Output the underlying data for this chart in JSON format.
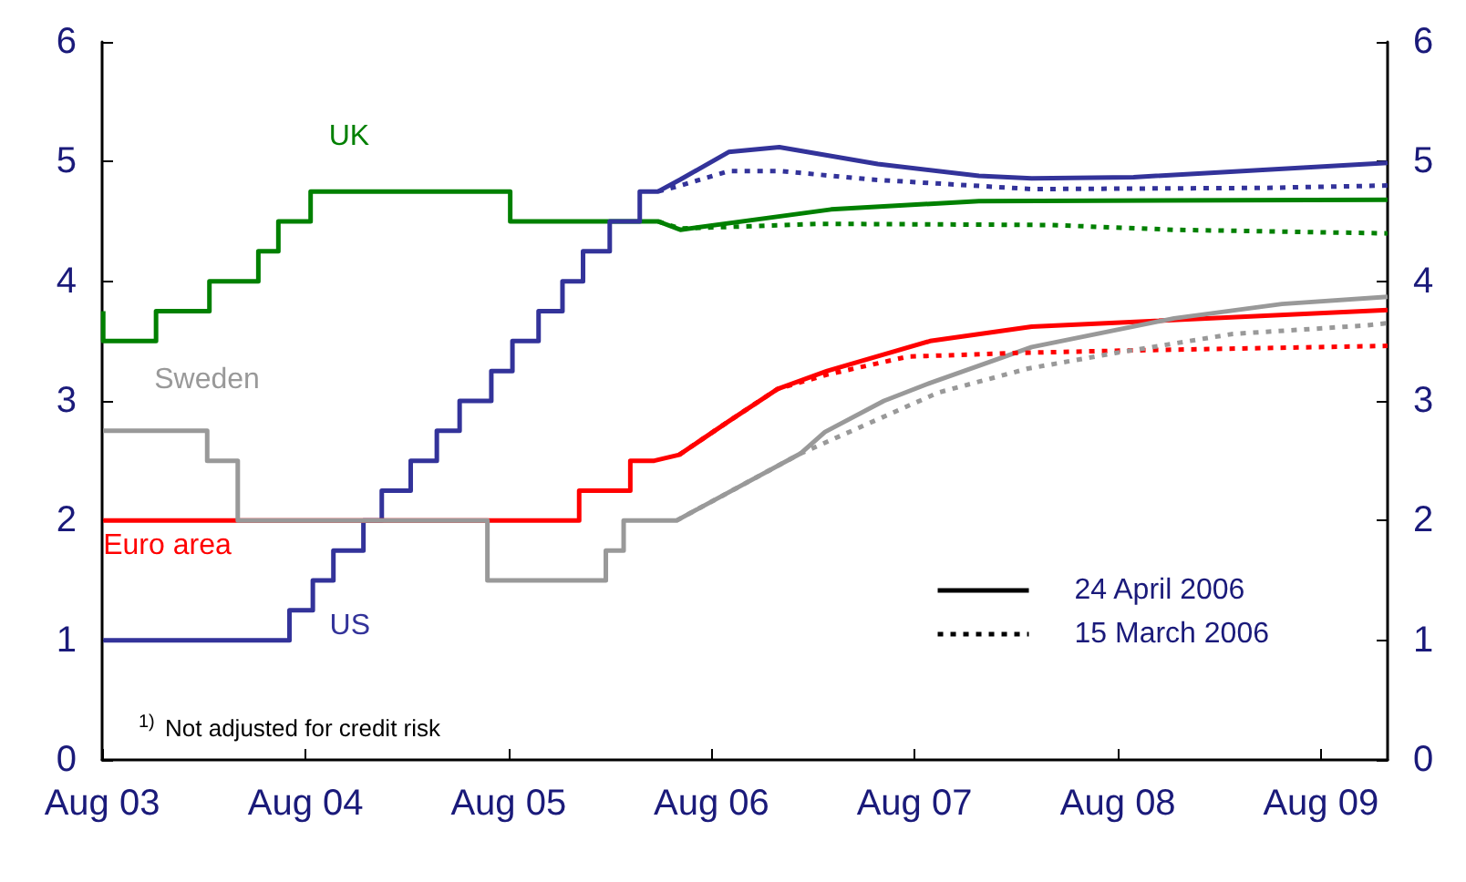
{
  "chart_data": {
    "type": "line",
    "xlim": [
      "2003-08-01",
      "2009-11-29"
    ],
    "xticks": [
      {
        "value": "2003-08-01",
        "label": "Aug 03"
      },
      {
        "value": "2004-08-01",
        "label": "Aug 04"
      },
      {
        "value": "2005-08-01",
        "label": "Aug 05"
      },
      {
        "value": "2006-08-01",
        "label": "Aug 06"
      },
      {
        "value": "2007-08-01",
        "label": "Aug 07"
      },
      {
        "value": "2008-08-01",
        "label": "Aug 08"
      },
      {
        "value": "2009-08-01",
        "label": "Aug 09"
      }
    ],
    "ylim": [
      0,
      6
    ],
    "yticks": [
      0,
      1,
      2,
      3,
      4,
      5,
      6
    ],
    "y2lim": [
      0,
      6
    ],
    "y2ticks": [
      0,
      1,
      2,
      3,
      4,
      5,
      6
    ],
    "grid": false,
    "legend": "bottom right",
    "series": [
      {
        "name": "UK",
        "color": "#008000",
        "line_style": "solid",
        "x": [
          "2003-08-03",
          "2003-08-03",
          "2003-11-06",
          "2003-11-06",
          "2004-02-10",
          "2004-02-10",
          "2004-05-08",
          "2004-05-08",
          "2004-06-13",
          "2004-06-13",
          "2004-08-10",
          "2004-08-10",
          "2005-08-04",
          "2005-08-04",
          "2006-04-27",
          "2006-06-06",
          "2007-03-04",
          "2007-11-25",
          "2009-11-29"
        ],
        "values": [
          3.75,
          3.5,
          3.5,
          3.75,
          3.75,
          4.0,
          4.0,
          4.25,
          4.25,
          4.5,
          4.5,
          4.75,
          4.75,
          4.5,
          4.5,
          4.43,
          4.6,
          4.67,
          4.68
        ]
      },
      {
        "name": "US",
        "color": "#33339a",
        "line_style": "solid",
        "x": [
          "2003-08-03",
          "2004-07-03",
          "2004-07-03",
          "2004-08-14",
          "2004-08-14",
          "2004-09-20",
          "2004-09-20",
          "2004-11-13",
          "2004-11-13",
          "2004-12-16",
          "2004-12-16",
          "2005-02-06",
          "2005-02-06",
          "2005-03-25",
          "2005-03-25",
          "2005-05-05",
          "2005-05-05",
          "2005-07-01",
          "2005-07-01",
          "2005-08-08",
          "2005-08-08",
          "2005-09-24",
          "2005-09-24",
          "2005-11-06",
          "2005-11-06",
          "2005-12-13",
          "2005-12-13",
          "2006-01-30",
          "2006-01-30",
          "2006-03-25",
          "2006-03-25",
          "2006-04-27",
          "2006-06-06",
          "2006-09-01",
          "2006-12-01",
          "2007-05-27",
          "2007-11-25",
          "2008-02-28",
          "2008-08-29",
          "2009-11-29"
        ],
        "values": [
          1.0,
          1.0,
          1.25,
          1.25,
          1.5,
          1.5,
          1.75,
          1.75,
          2.0,
          2.0,
          2.25,
          2.25,
          2.5,
          2.5,
          2.75,
          2.75,
          3.0,
          3.0,
          3.25,
          3.25,
          3.5,
          3.5,
          3.75,
          3.75,
          4.0,
          4.0,
          4.25,
          4.25,
          4.5,
          4.5,
          4.75,
          4.75,
          4.85,
          5.08,
          5.12,
          4.98,
          4.88,
          4.86,
          4.87,
          4.99
        ]
      },
      {
        "name": "Euro area",
        "color": "#ff0000",
        "line_style": "solid",
        "x": [
          "2003-08-03",
          "2005-12-06",
          "2005-12-06",
          "2006-03-08",
          "2006-03-08",
          "2006-04-20",
          "2006-06-04",
          "2006-09-01",
          "2006-11-28",
          "2007-02-25",
          "2007-08-29",
          "2008-02-28",
          "2009-11-29"
        ],
        "values": [
          2.0,
          2.0,
          2.25,
          2.25,
          2.5,
          2.5,
          2.55,
          2.83,
          3.1,
          3.25,
          3.5,
          3.62,
          3.76
        ]
      },
      {
        "name": "Sweden",
        "color": "#999999",
        "line_style": "solid",
        "x": [
          "2003-08-03",
          "2004-02-06",
          "2004-02-06",
          "2004-04-01",
          "2004-04-01",
          "2005-06-24",
          "2005-06-24",
          "2006-01-23",
          "2006-01-23",
          "2006-02-24",
          "2006-02-24",
          "2006-05-30",
          "2007-01-08",
          "2007-02-21",
          "2007-06-07",
          "2007-08-29",
          "2008-02-28",
          "2008-11-10",
          "2009-05-23",
          "2009-11-29"
        ],
        "values": [
          2.75,
          2.75,
          2.5,
          2.5,
          2.0,
          2.0,
          1.5,
          1.5,
          1.75,
          1.75,
          2.0,
          2.0,
          2.56,
          2.74,
          3.0,
          3.15,
          3.45,
          3.69,
          3.81,
          3.87
        ]
      },
      {
        "color": "#008000",
        "line_style": "dotted",
        "x": [
          "2006-04-27",
          "2006-06-06",
          "2007-02-10",
          "2008-04-01",
          "2008-11-10",
          "2009-11-29"
        ],
        "values": [
          4.5,
          4.44,
          4.48,
          4.47,
          4.43,
          4.4
        ]
      },
      {
        "color": "#33339a",
        "line_style": "dotted",
        "x": [
          "2006-04-27",
          "2006-06-06",
          "2006-09-01",
          "2006-12-05",
          "2007-05-16",
          "2008-02-28",
          "2009-04-20",
          "2009-11-29"
        ],
        "values": [
          4.75,
          4.8,
          4.92,
          4.92,
          4.85,
          4.77,
          4.78,
          4.8
        ]
      },
      {
        "color": "#ff0000",
        "line_style": "dotted",
        "x": [
          "2006-06-04",
          "2006-09-01",
          "2006-11-28",
          "2007-02-25",
          "2007-07-20",
          "2008-01-26",
          "2008-08-07",
          "2009-11-29"
        ],
        "values": [
          2.55,
          2.83,
          3.1,
          3.22,
          3.37,
          3.4,
          3.42,
          3.46
        ]
      },
      {
        "color": "#999999",
        "line_style": "dotted",
        "x": [
          "2006-05-30",
          "2007-01-08",
          "2007-09-13",
          "2008-02-21",
          "2008-07-27",
          "2009-02-24",
          "2009-10-20",
          "2009-11-29"
        ],
        "values": [
          2.0,
          2.56,
          3.07,
          3.27,
          3.4,
          3.56,
          3.63,
          3.65
        ]
      },
      {
        "name": "24 April 2006",
        "color": "#000000",
        "line_style": "solid"
      },
      {
        "name": "15 March 2006",
        "color": "#000000",
        "line_style": "dotted"
      }
    ],
    "annotations": [
      "$^{1)}$ Not adjusted for credit risk"
    ]
  }
}
